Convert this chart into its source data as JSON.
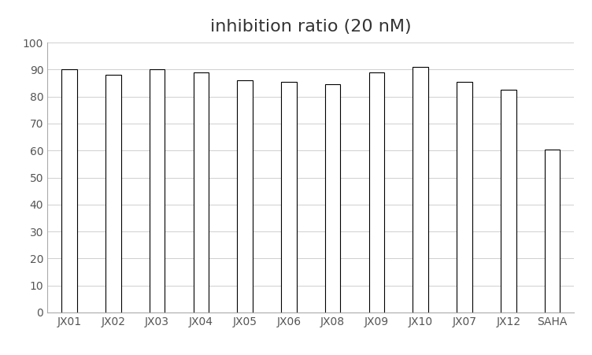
{
  "title": "inhibition ratio (20 nM)",
  "categories": [
    "JX01",
    "JX02",
    "JX03",
    "JX04",
    "JX05",
    "JX06",
    "JX08",
    "JX09",
    "JX10",
    "JX07",
    "JX12",
    "SAHA"
  ],
  "values": [
    90.0,
    88.2,
    90.0,
    89.0,
    86.0,
    85.5,
    84.5,
    89.0,
    91.0,
    85.5,
    82.5,
    60.5
  ],
  "bar_color": "#ffffff",
  "bar_edgecolor": "#000000",
  "bar_linewidth": 0.8,
  "ylim": [
    0,
    100
  ],
  "yticks": [
    0,
    10,
    20,
    30,
    40,
    50,
    60,
    70,
    80,
    90,
    100
  ],
  "grid_color": "#c8c8c8",
  "grid_linewidth": 0.6,
  "background_color": "#ffffff",
  "title_fontsize": 16,
  "tick_fontsize": 10,
  "tick_color": "#555555",
  "bar_width": 0.35,
  "spine_color": "#aaaaaa"
}
